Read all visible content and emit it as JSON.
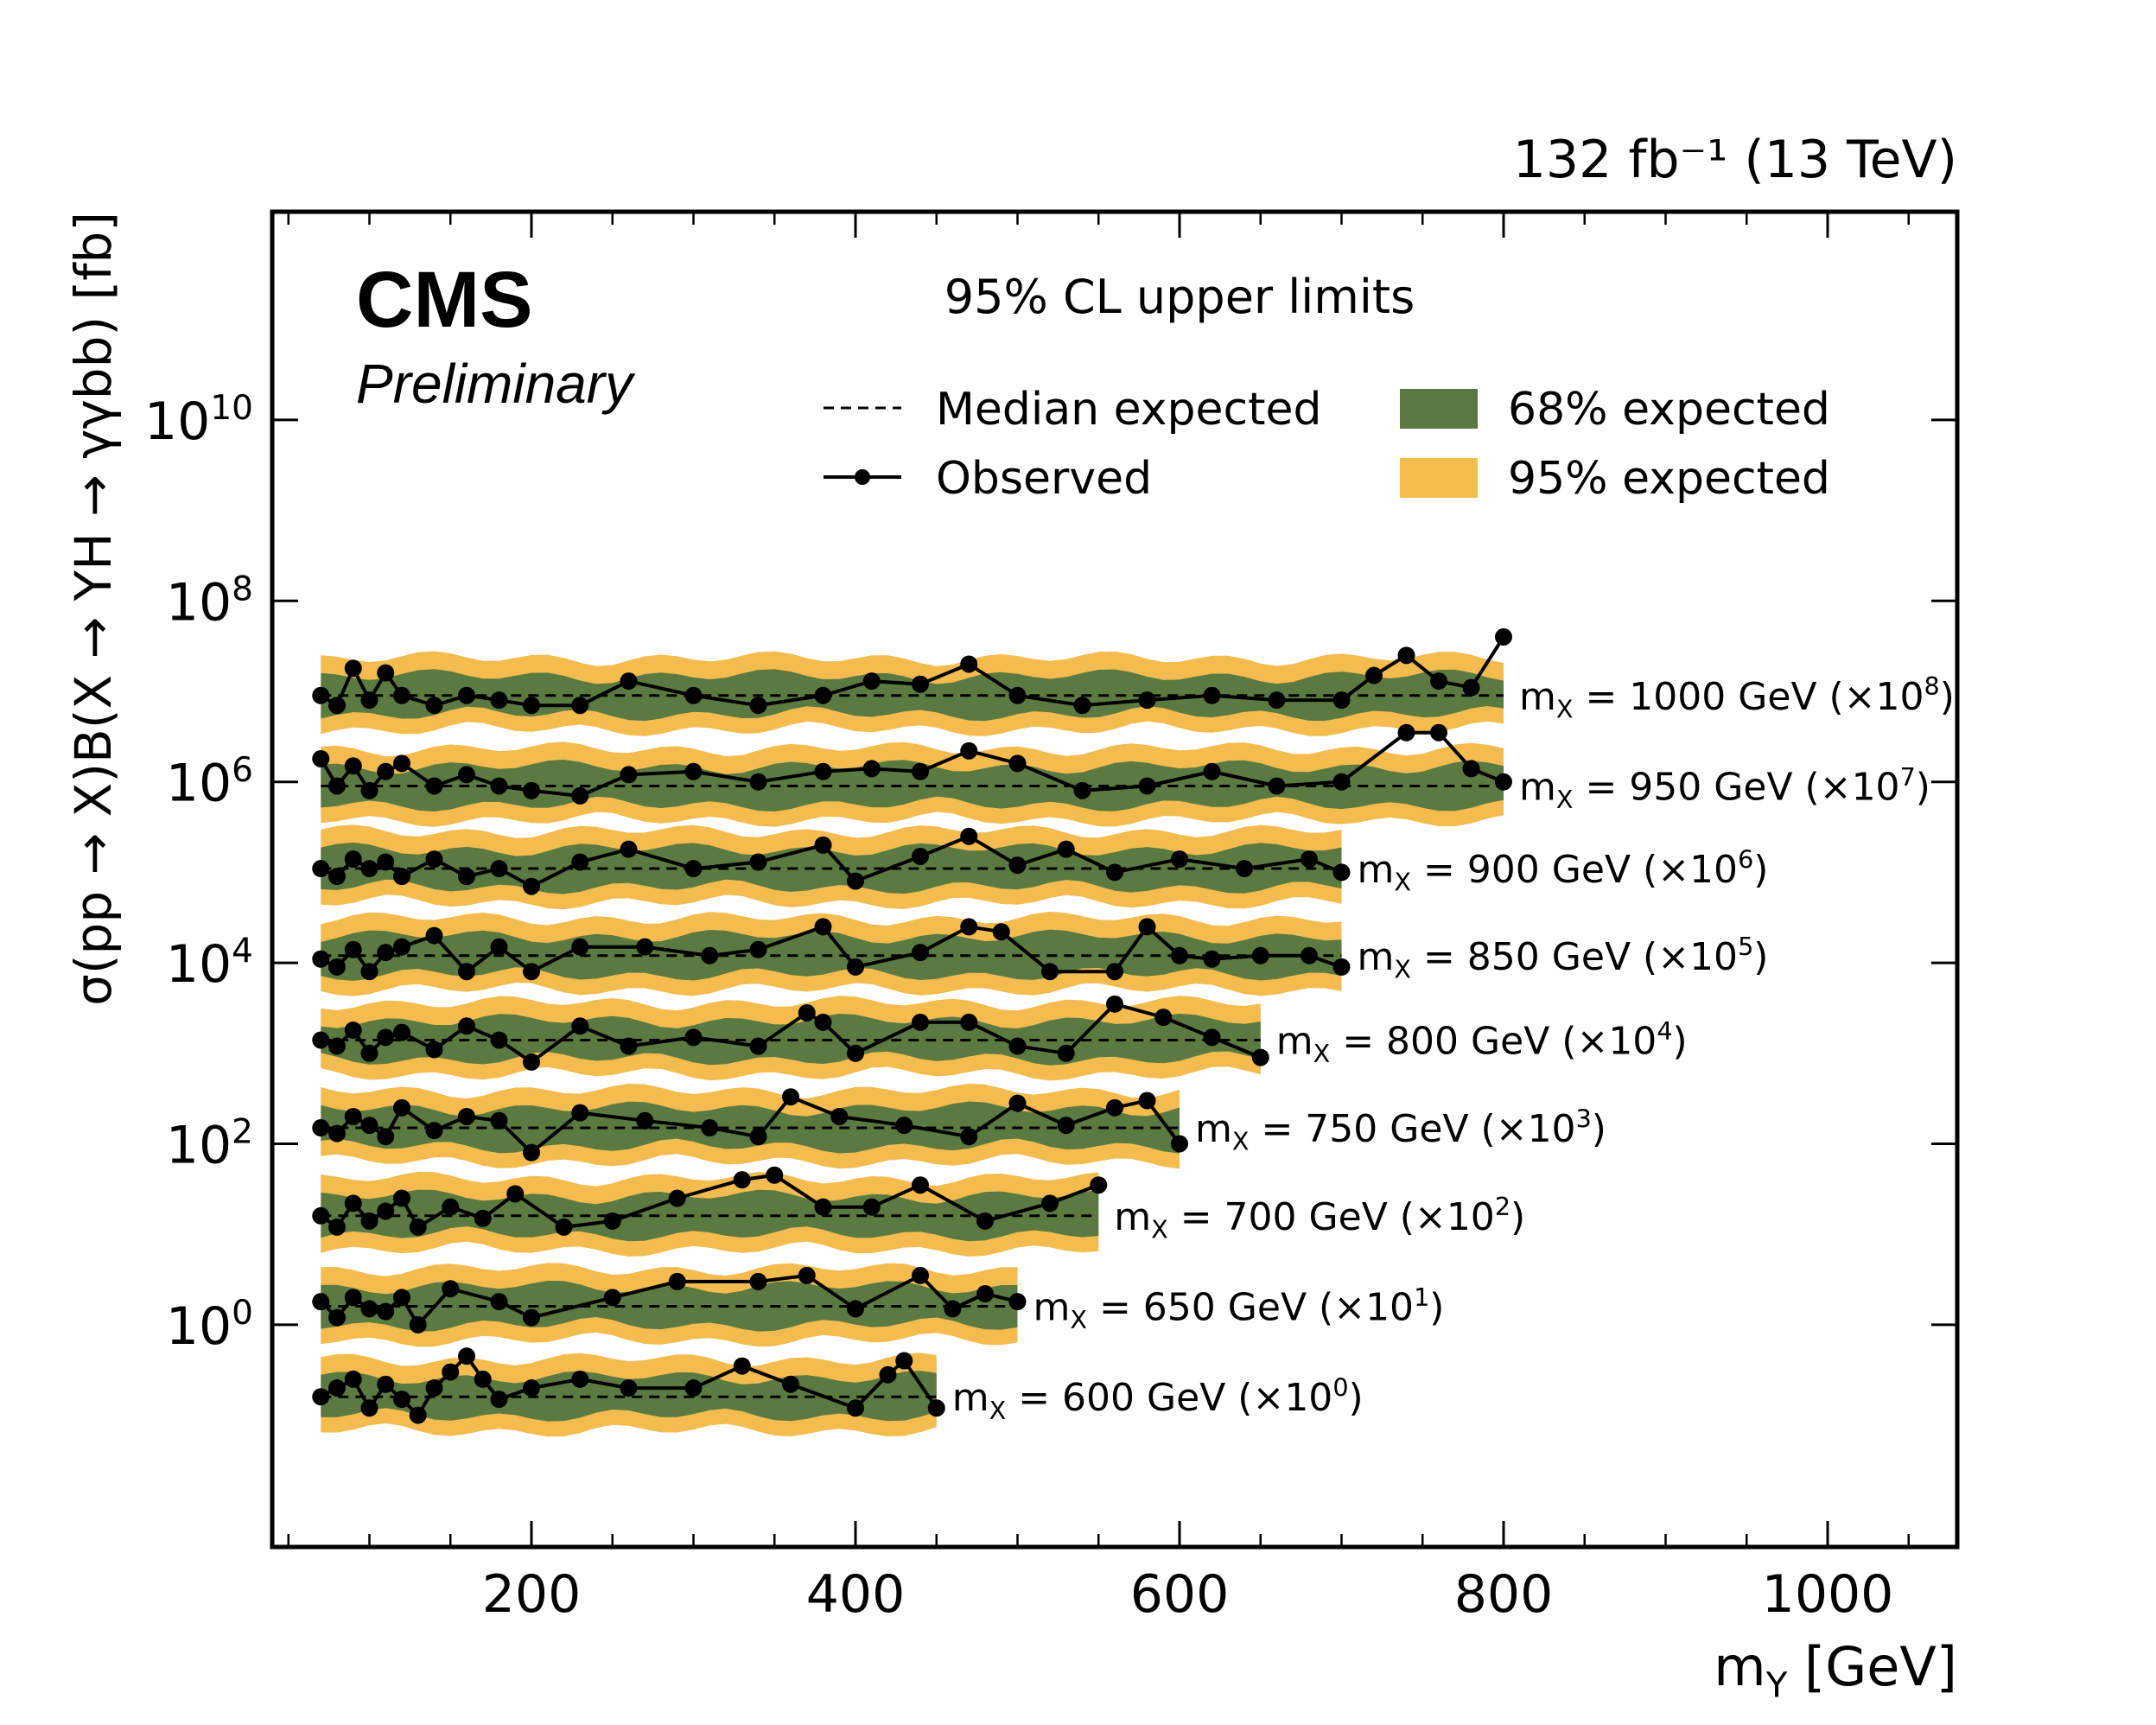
{
  "lumi_label": "132 fb⁻¹ (13 TeV)",
  "experiment": "CMS",
  "status": "Preliminary",
  "legend": {
    "title": "95% CL upper limits",
    "items": [
      {
        "label": "Median expected",
        "style": "dashed-line",
        "color": "#000000"
      },
      {
        "label": "Observed",
        "style": "line-with-markers",
        "color": "#000000"
      },
      {
        "label": "68% expected",
        "style": "filled-band",
        "color": "#5b7a41"
      },
      {
        "label": "95% expected",
        "style": "filled-band",
        "color": "#f4bb4f"
      }
    ]
  },
  "chart_data": {
    "type": "line",
    "xlabel": "m_Y [GeV]",
    "ylabel": "σ(pp → X)B(X → YH → γγbb) [fb]",
    "x_ticks": [
      200,
      400,
      600,
      800,
      1000
    ],
    "y_ticks": [
      "10^0",
      "10^2",
      "10^4",
      "10^6",
      "10^8",
      "10^10"
    ],
    "xlim": [
      40,
      1080
    ],
    "ylim": [
      0.0035,
      2000000000000.0
    ],
    "y_scale": "log",
    "grid": false,
    "legend_position": "top",
    "colors": {
      "band68": "#5b7a41",
      "band95": "#f4bb4f",
      "observed": "#000000",
      "expected": "#000000"
    },
    "series": [
      {
        "name": "m_X = 600 GeV (×10^0)",
        "mx": 600,
        "scale": 1,
        "x_min": 70,
        "x_max": 450,
        "expected_y": 0.16,
        "observed_x": [
          70,
          80,
          90,
          100,
          110,
          120,
          130,
          140,
          150,
          160,
          170,
          180,
          200,
          230,
          260,
          300,
          330,
          360,
          400,
          420,
          430,
          450
        ],
        "observed_y": [
          0.16,
          0.2,
          0.25,
          0.12,
          0.22,
          0.15,
          0.1,
          0.2,
          0.3,
          0.45,
          0.25,
          0.15,
          0.2,
          0.25,
          0.2,
          0.2,
          0.35,
          0.22,
          0.12,
          0.28,
          0.4,
          0.12
        ]
      },
      {
        "name": "m_X = 650 GeV (×10^1)",
        "mx": 650,
        "scale": 10,
        "x_min": 70,
        "x_max": 500,
        "expected_y": 1.6,
        "observed_x": [
          70,
          80,
          90,
          100,
          110,
          120,
          130,
          150,
          180,
          200,
          250,
          290,
          340,
          370,
          400,
          440,
          460,
          480,
          500
        ],
        "observed_y": [
          1.8,
          1.2,
          2.0,
          1.5,
          1.4,
          2.0,
          1.0,
          2.5,
          1.8,
          1.2,
          2.0,
          3.0,
          3.0,
          3.5,
          1.5,
          3.5,
          1.5,
          2.2,
          1.8
        ]
      },
      {
        "name": "m_X = 700 GeV (×10^2)",
        "mx": 700,
        "scale": 100,
        "x_min": 70,
        "x_max": 550,
        "expected_y": 16,
        "observed_x": [
          70,
          80,
          90,
          100,
          110,
          120,
          130,
          150,
          170,
          190,
          220,
          250,
          290,
          330,
          350,
          380,
          410,
          440,
          480,
          520,
          550
        ],
        "observed_y": [
          16,
          12,
          22,
          14,
          18,
          25,
          12,
          20,
          15,
          28,
          12,
          14,
          25,
          40,
          45,
          20,
          20,
          35,
          14,
          22,
          35
        ]
      },
      {
        "name": "m_X = 750 GeV (×10^3)",
        "mx": 750,
        "scale": 1000,
        "x_min": 70,
        "x_max": 600,
        "expected_y": 150,
        "observed_x": [
          70,
          80,
          90,
          100,
          110,
          120,
          140,
          160,
          180,
          200,
          230,
          270,
          310,
          340,
          360,
          390,
          430,
          470,
          500,
          530,
          560,
          580,
          600
        ],
        "observed_y": [
          150,
          130,
          200,
          160,
          120,
          250,
          140,
          200,
          180,
          80,
          220,
          180,
          150,
          120,
          330,
          200,
          160,
          120,
          280,
          160,
          250,
          300,
          100
        ]
      },
      {
        "name": "m_X = 800 GeV (×10^4)",
        "mx": 800,
        "scale": 10000,
        "x_min": 70,
        "x_max": 650,
        "expected_y": 1400,
        "observed_x": [
          70,
          80,
          90,
          100,
          110,
          120,
          140,
          160,
          180,
          200,
          230,
          260,
          300,
          340,
          370,
          380,
          400,
          440,
          470,
          500,
          530,
          560,
          590,
          620,
          650
        ],
        "observed_y": [
          1400,
          1200,
          1800,
          1000,
          1500,
          1700,
          1100,
          2000,
          1400,
          800,
          2000,
          1200,
          1500,
          1200,
          2800,
          2200,
          1000,
          2200,
          2200,
          1200,
          1000,
          3500,
          2500,
          1500,
          900
        ]
      },
      {
        "name": "m_X = 850 GeV (×10^5)",
        "mx": 850,
        "scale": 100000,
        "x_min": 70,
        "x_max": 700,
        "expected_y": 12000,
        "observed_x": [
          70,
          80,
          90,
          100,
          110,
          120,
          140,
          160,
          180,
          200,
          230,
          270,
          310,
          340,
          380,
          400,
          440,
          470,
          490,
          520,
          560,
          580,
          600,
          620,
          650,
          680,
          700
        ],
        "observed_y": [
          11000,
          9000,
          14000,
          8000,
          13000,
          15000,
          20000,
          8000,
          15000,
          8000,
          15000,
          15000,
          12000,
          14000,
          25000,
          9000,
          13000,
          25000,
          22000,
          8000,
          8000,
          25000,
          12000,
          11000,
          12000,
          12000,
          9000
        ]
      },
      {
        "name": "m_X = 900 GeV (×10^6)",
        "mx": 900,
        "scale": 1000000,
        "x_min": 70,
        "x_max": 700,
        "expected_y": 110000,
        "observed_x": [
          70,
          80,
          90,
          100,
          110,
          120,
          140,
          160,
          180,
          200,
          230,
          260,
          300,
          340,
          380,
          400,
          440,
          470,
          500,
          530,
          560,
          600,
          640,
          680,
          700
        ],
        "observed_y": [
          110000,
          90000,
          140000,
          110000,
          130000,
          90000,
          140000,
          90000,
          110000,
          70000,
          130000,
          180000,
          110000,
          130000,
          200000,
          80000,
          150000,
          250000,
          120000,
          180000,
          100000,
          140000,
          110000,
          140000,
          100000
        ]
      },
      {
        "name": "m_X = 950 GeV (×10^7)",
        "mx": 950,
        "scale": 10000000,
        "x_min": 70,
        "x_max": 800,
        "expected_y": 900000,
        "observed_x": [
          70,
          80,
          90,
          100,
          110,
          120,
          140,
          160,
          180,
          200,
          230,
          260,
          300,
          340,
          380,
          410,
          440,
          470,
          500,
          540,
          580,
          620,
          660,
          700,
          740,
          760,
          780,
          800
        ],
        "observed_y": [
          1800000,
          900000,
          1500000,
          800000,
          1300000,
          1600000,
          900000,
          1200000,
          900000,
          800000,
          700000,
          1200000,
          1300000,
          1000000,
          1300000,
          1400000,
          1300000,
          2200000,
          1600000,
          800000,
          900000,
          1300000,
          900000,
          1000000,
          3500000,
          3500000,
          1400000,
          1000000
        ]
      },
      {
        "name": "m_X = 1000 GeV (×10^8)",
        "mx": 1000,
        "scale": 100000000,
        "x_min": 70,
        "x_max": 800,
        "expected_y": 9000000,
        "observed_x": [
          70,
          80,
          90,
          100,
          110,
          120,
          140,
          160,
          180,
          200,
          230,
          260,
          300,
          340,
          380,
          410,
          440,
          470,
          500,
          540,
          580,
          620,
          660,
          700,
          720,
          740,
          760,
          780,
          800
        ],
        "observed_y": [
          9000000,
          7000000,
          18000000,
          8000000,
          16000000,
          9000000,
          7000000,
          9000000,
          8000000,
          7000000,
          7000000,
          13000000,
          9000000,
          7000000,
          9000000,
          13000000,
          12000000,
          20000000,
          9000000,
          7000000,
          8000000,
          9000000,
          8000000,
          8000000,
          15000000,
          25000000,
          13000000,
          11000000,
          40000000
        ]
      }
    ]
  }
}
